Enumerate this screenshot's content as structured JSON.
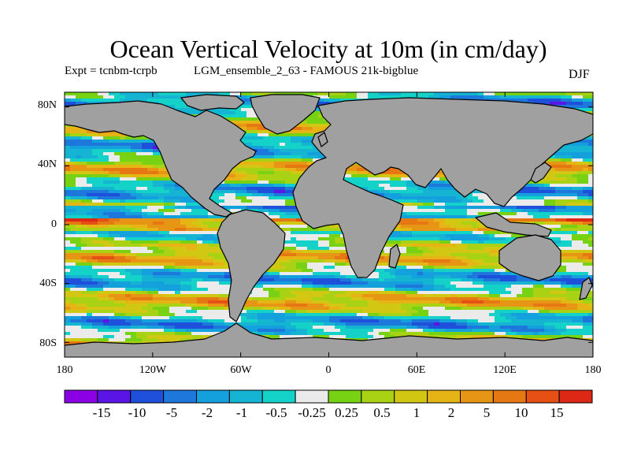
{
  "title": "Ocean Vertical Velocity at 10m (in cm/day)",
  "experiment": "Expt = tcnbm-tcrpb",
  "run_name": "LGM_ensemble_2_63 - FAMOUS 21k-bigblue",
  "season": "DJF",
  "map": {
    "projection": "cylindrical equidistant",
    "land_color": "#A0A0A0",
    "lat_ticks": [
      "80N",
      "40N",
      "0",
      "40S",
      "80S"
    ],
    "lon_ticks": [
      "180",
      "120W",
      "60W",
      "0",
      "60E",
      "120E",
      "180"
    ]
  },
  "colorbar": {
    "colors": [
      "#8C00E6",
      "#5A14E6",
      "#1E50DC",
      "#1E78DC",
      "#14A0DC",
      "#14B4D2",
      "#14D2C8",
      "#EBEBEB",
      "#78D214",
      "#AAD214",
      "#D2C814",
      "#E6B414",
      "#E69614",
      "#E67814",
      "#E65014",
      "#DC2814"
    ],
    "labels": [
      "-15",
      "-10",
      "-5",
      "-2",
      "-1",
      "-0.5",
      "-0.25",
      "0.25",
      "0.5",
      "1",
      "2",
      "5",
      "10",
      "15"
    ]
  }
}
